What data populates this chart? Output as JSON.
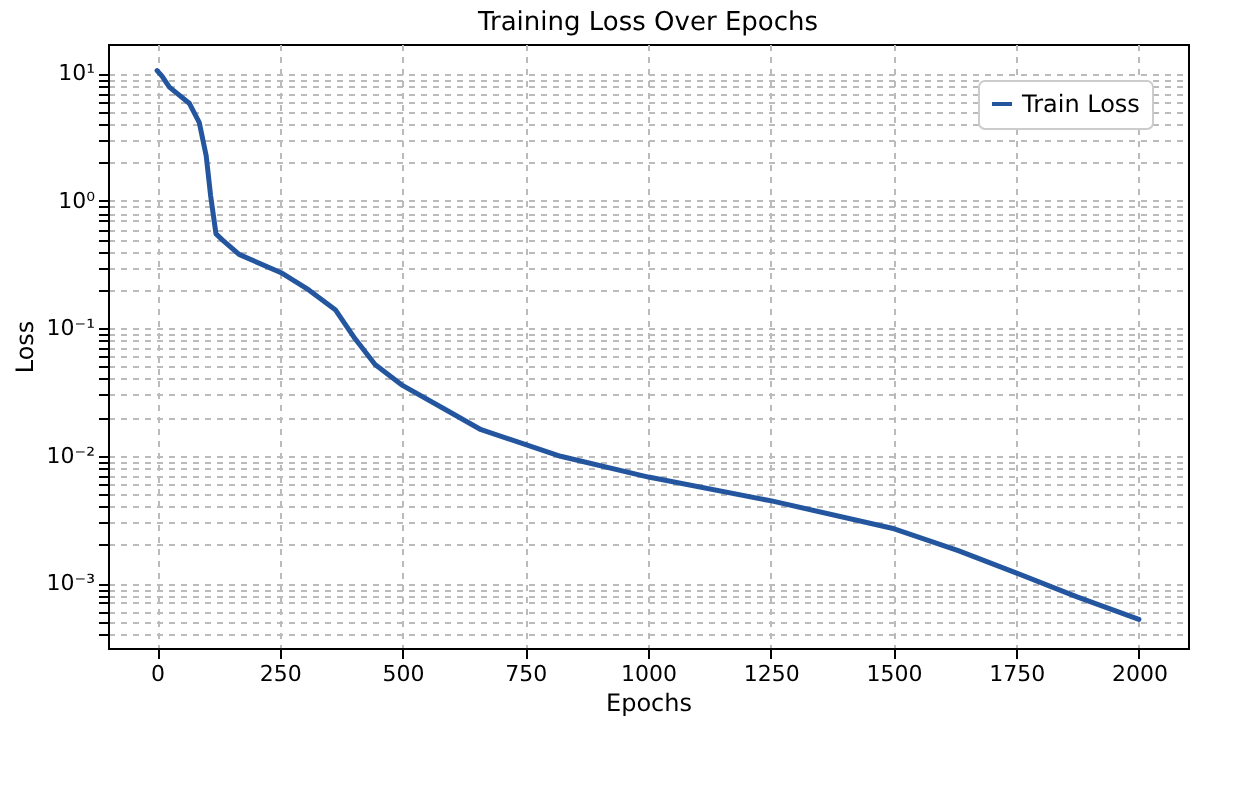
{
  "chart_data": {
    "type": "line",
    "title": "Training Loss Over Epochs",
    "xlabel": "Epochs",
    "ylabel": "Loss",
    "x": [
      0,
      10,
      25,
      66,
      86,
      100,
      109,
      120,
      134,
      167,
      255,
      309,
      363,
      403,
      444,
      498,
      579,
      660,
      822,
      1001,
      1254,
      1497,
      1632,
      1751,
      1874,
      2000
    ],
    "series": [
      {
        "name": "Train Loss",
        "color": "#2456a0",
        "values": [
          10.5,
          9.5,
          7.8,
          5.8,
          4.1,
          2.26,
          1.1,
          0.55,
          0.49,
          0.38,
          0.27,
          0.2,
          0.14,
          0.083,
          0.052,
          0.036,
          0.024,
          0.016,
          0.0099,
          0.0068,
          0.0044,
          0.0027,
          0.0018,
          0.0012,
          0.00078,
          0.00052
        ]
      }
    ],
    "xlim": [
      -100,
      2100
    ],
    "xticks": [
      0,
      250,
      500,
      750,
      1000,
      1250,
      1500,
      1750,
      2000
    ],
    "ylim": [
      0.00031,
      17
    ],
    "log": "y",
    "yticks": [
      {
        "value": 0.0004,
        "label": null
      },
      {
        "value": 0.0005,
        "label": null
      },
      {
        "value": 0.0006,
        "label": null
      },
      {
        "value": 0.0007,
        "label": null
      },
      {
        "value": 0.0008,
        "label": null
      },
      {
        "value": 0.0009,
        "label": null
      },
      {
        "value": 0.001,
        "label": "10⁻³"
      },
      {
        "value": 0.002,
        "label": null
      },
      {
        "value": 0.003,
        "label": null
      },
      {
        "value": 0.004,
        "label": null
      },
      {
        "value": 0.005,
        "label": null
      },
      {
        "value": 0.006,
        "label": null
      },
      {
        "value": 0.007,
        "label": null
      },
      {
        "value": 0.008,
        "label": null
      },
      {
        "value": 0.009,
        "label": null
      },
      {
        "value": 0.01,
        "label": "10⁻²"
      },
      {
        "value": 0.02,
        "label": null
      },
      {
        "value": 0.03,
        "label": null
      },
      {
        "value": 0.04,
        "label": null
      },
      {
        "value": 0.05,
        "label": null
      },
      {
        "value": 0.06,
        "label": null
      },
      {
        "value": 0.07,
        "label": null
      },
      {
        "value": 0.08,
        "label": null
      },
      {
        "value": 0.09,
        "label": null
      },
      {
        "value": 0.1,
        "label": "10⁻¹"
      },
      {
        "value": 0.2,
        "label": null
      },
      {
        "value": 0.3,
        "label": null
      },
      {
        "value": 0.4,
        "label": null
      },
      {
        "value": 0.5,
        "label": null
      },
      {
        "value": 0.6,
        "label": null
      },
      {
        "value": 0.7,
        "label": null
      },
      {
        "value": 0.8,
        "label": null
      },
      {
        "value": 0.9,
        "label": null
      },
      {
        "value": 1,
        "label": "10⁰"
      },
      {
        "value": 2,
        "label": null
      },
      {
        "value": 3,
        "label": null
      },
      {
        "value": 4,
        "label": null
      },
      {
        "value": 5,
        "label": null
      },
      {
        "value": 6,
        "label": null
      },
      {
        "value": 7,
        "label": null
      },
      {
        "value": 8,
        "label": null
      },
      {
        "value": 9,
        "label": null
      },
      {
        "value": 10,
        "label": "10¹"
      }
    ],
    "grid": true,
    "legend": "top right",
    "line_style": "solid"
  }
}
